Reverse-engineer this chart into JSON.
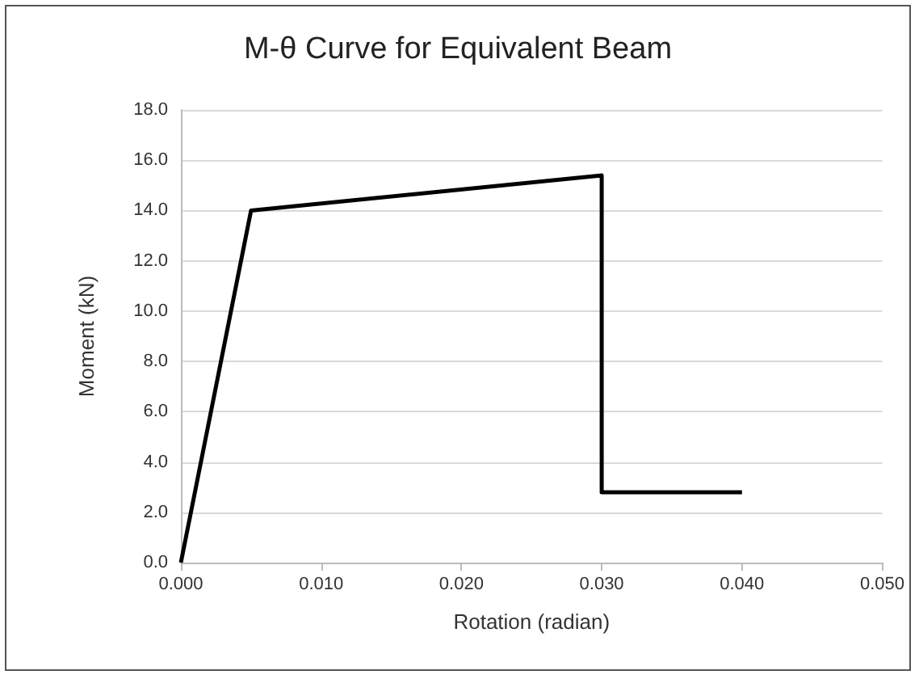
{
  "chart_data": {
    "type": "line",
    "title": "M-θ Curve for Equivalent Beam",
    "xlabel": "Rotation (radian)",
    "ylabel": "Moment (kN)",
    "series": [
      {
        "color": "#000000",
        "x": [
          0,
          0.005,
          0.03,
          0.03,
          0.04
        ],
        "values": [
          0,
          14.0,
          15.4,
          2.8,
          2.8
        ]
      }
    ],
    "xlim": [
      0,
      0.05
    ],
    "xticks": [
      {
        "value": 0,
        "label": "0.000"
      },
      {
        "value": 0.01,
        "label": "0.010"
      },
      {
        "value": 0.02,
        "label": "0.020"
      },
      {
        "value": 0.03,
        "label": "0.030"
      },
      {
        "value": 0.04,
        "label": "0.040"
      },
      {
        "value": 0.05,
        "label": "0.050"
      }
    ],
    "ylim": [
      0,
      18
    ],
    "yticks": [
      {
        "value": 0,
        "label": "0.0"
      },
      {
        "value": 2,
        "label": "2.0"
      },
      {
        "value": 4,
        "label": "4.0"
      },
      {
        "value": 6,
        "label": "6.0"
      },
      {
        "value": 8,
        "label": "8.0"
      },
      {
        "value": 10,
        "label": "10.0"
      },
      {
        "value": 12,
        "label": "12.0"
      },
      {
        "value": 14,
        "label": "14.0"
      },
      {
        "value": 16,
        "label": "16.0"
      },
      {
        "value": 18,
        "label": "18.0"
      }
    ],
    "grid": "y",
    "marker": "none",
    "line_style": "solid"
  }
}
